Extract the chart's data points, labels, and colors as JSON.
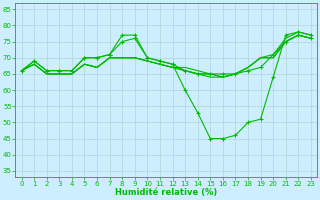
{
  "xlabel": "Humidité relative (%)",
  "background_color": "#cceeff",
  "grid_color": "#aacccc",
  "line_color": "#00bb00",
  "xlim": [
    -0.5,
    23.5
  ],
  "ylim": [
    33,
    87
  ],
  "yticks": [
    35,
    40,
    45,
    50,
    55,
    60,
    65,
    70,
    75,
    80,
    85
  ],
  "xticks": [
    0,
    1,
    2,
    3,
    4,
    5,
    6,
    7,
    8,
    9,
    10,
    11,
    12,
    13,
    14,
    15,
    16,
    17,
    18,
    19,
    20,
    21,
    22,
    23
  ],
  "lines": [
    {
      "x": [
        0,
        1,
        2,
        3,
        4,
        5,
        6,
        7,
        8,
        9,
        10,
        11,
        12,
        13,
        14,
        15,
        16,
        17,
        18,
        19,
        20,
        21,
        22,
        23
      ],
      "y": [
        66,
        69,
        66,
        66,
        66,
        70,
        70,
        71,
        77,
        77,
        70,
        69,
        68,
        60,
        53,
        45,
        45,
        46,
        50,
        51,
        64,
        77,
        78,
        77
      ],
      "marker": true
    },
    {
      "x": [
        0,
        1,
        2,
        3,
        4,
        5,
        6,
        7,
        8,
        9,
        10,
        11,
        12,
        13,
        14,
        15,
        16,
        17,
        18,
        19,
        20,
        21,
        22,
        23
      ],
      "y": [
        66,
        69,
        66,
        66,
        66,
        70,
        70,
        71,
        75,
        76,
        70,
        69,
        68,
        66,
        65,
        65,
        65,
        65,
        66,
        67,
        71,
        75,
        77,
        76
      ],
      "marker": true
    },
    {
      "x": [
        0,
        1,
        2,
        3,
        4,
        5,
        6,
        7,
        8,
        9,
        10,
        11,
        12,
        13,
        14,
        15,
        16,
        17,
        18,
        19,
        20,
        21,
        22,
        23
      ],
      "y": [
        66,
        68,
        65,
        65,
        65,
        68,
        67,
        70,
        70,
        70,
        69,
        68,
        67,
        66,
        65,
        64,
        64,
        65,
        67,
        70,
        70,
        75,
        77,
        76
      ],
      "marker": false
    },
    {
      "x": [
        0,
        1,
        2,
        3,
        4,
        5,
        6,
        7,
        8,
        9,
        10,
        11,
        12,
        13,
        14,
        15,
        16,
        17,
        18,
        19,
        20,
        21,
        22,
        23
      ],
      "y": [
        66,
        68,
        65,
        65,
        65,
        68,
        67,
        70,
        70,
        70,
        69,
        68,
        67,
        66,
        65,
        65,
        64,
        65,
        67,
        70,
        70,
        75,
        77,
        76
      ],
      "marker": false
    },
    {
      "x": [
        0,
        1,
        2,
        3,
        4,
        5,
        6,
        7,
        8,
        9,
        10,
        11,
        12,
        13,
        14,
        15,
        16,
        17,
        18,
        19,
        20,
        21,
        22,
        23
      ],
      "y": [
        66,
        68,
        65,
        65,
        65,
        68,
        67,
        70,
        70,
        70,
        69,
        68,
        67,
        67,
        66,
        65,
        64,
        65,
        67,
        70,
        71,
        76,
        78,
        77
      ],
      "marker": false
    }
  ]
}
